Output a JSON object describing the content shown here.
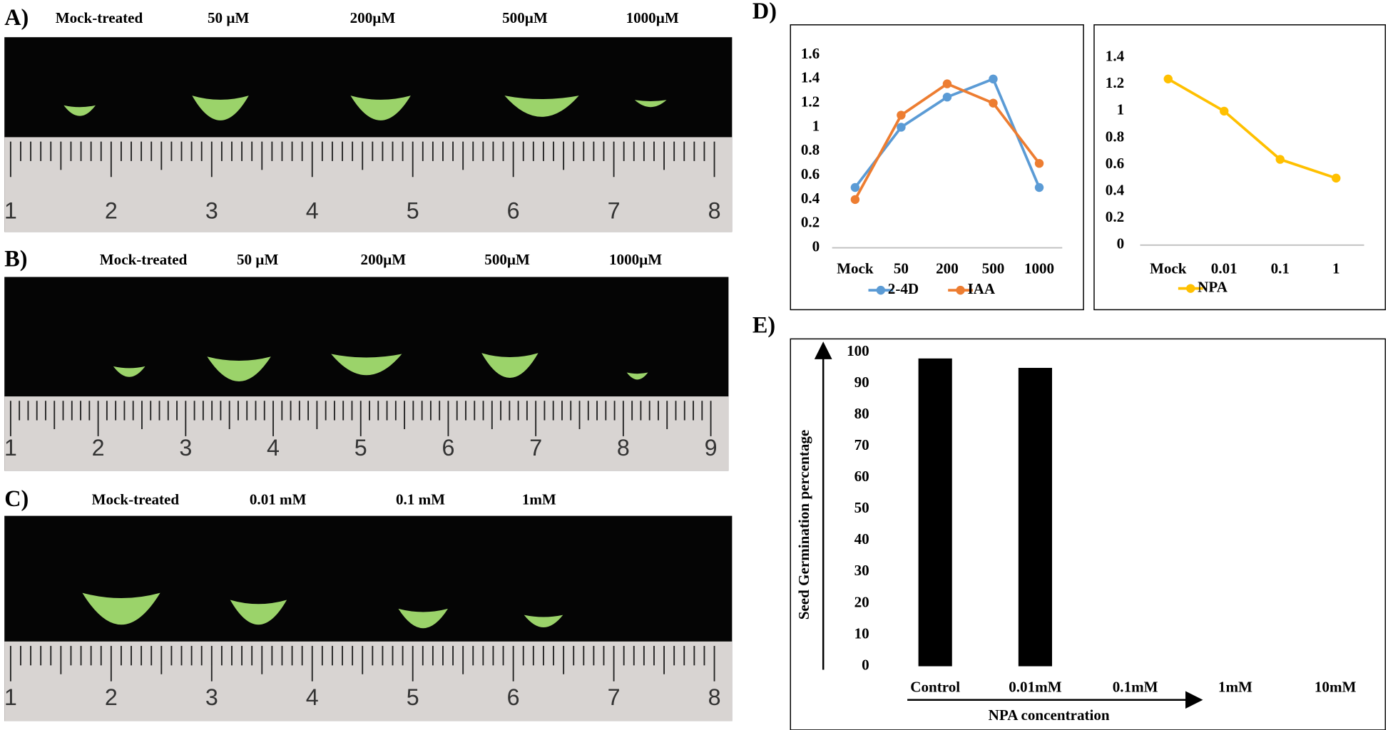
{
  "photo_panels": [
    {
      "label": "A)",
      "conditions": [
        "Mock-treated",
        "50 µM",
        "200µM",
        "500µM",
        "1000µM"
      ],
      "ruler": [
        1,
        2,
        3,
        4,
        5,
        6,
        7,
        8
      ]
    },
    {
      "label": "B)",
      "conditions": [
        "Mock-treated",
        "50 µM",
        "200µM",
        "500µM",
        "1000µM"
      ],
      "ruler": [
        1,
        2,
        3,
        4,
        5,
        6,
        7,
        8,
        9
      ]
    },
    {
      "label": "C)",
      "conditions": [
        "Mock-treated",
        "0.01 mM",
        "0.1 mM",
        "1mM"
      ],
      "ruler": [
        1,
        2,
        3,
        4,
        5,
        6,
        7,
        8
      ]
    }
  ],
  "chart_data": [
    {
      "type": "line",
      "panel_label": "D)",
      "categories": [
        "Mock",
        "50",
        "200",
        "500",
        "1000"
      ],
      "series": [
        {
          "name": "2-4D",
          "color": "#5b9bd5",
          "values": [
            0.5,
            1.0,
            1.25,
            1.4,
            0.5
          ]
        },
        {
          "name": "IAA",
          "color": "#ed7d31",
          "values": [
            0.4,
            1.1,
            1.36,
            1.2,
            0.7
          ]
        }
      ],
      "ylim": [
        0,
        1.6
      ],
      "yticks": [
        0,
        0.2,
        0.4,
        0.6,
        0.8,
        1,
        1.2,
        1.4,
        1.6
      ],
      "legend": "bottom"
    },
    {
      "type": "line",
      "categories": [
        "Mock",
        "0.01",
        "0.1",
        "1"
      ],
      "series": [
        {
          "name": "NPA",
          "color": "#ffc000",
          "values": [
            1.24,
            1.0,
            0.64,
            0.5
          ]
        }
      ],
      "ylim": [
        0,
        1.4
      ],
      "yticks": [
        0,
        0.2,
        0.4,
        0.6,
        0.8,
        1,
        1.2,
        1.4
      ],
      "legend": "bottom"
    },
    {
      "type": "bar",
      "panel_label": "E)",
      "categories": [
        "Control",
        "0.01mM",
        "0.1mM",
        "1mM",
        "10mM"
      ],
      "values": [
        98,
        95,
        0,
        0,
        0
      ],
      "color": "#000000",
      "y_label": "Seed Germination percentage",
      "x_label": "NPA concentration",
      "ylim": [
        0,
        100
      ],
      "yticks": [
        0,
        10,
        20,
        30,
        40,
        50,
        60,
        70,
        80,
        90,
        100
      ]
    }
  ]
}
